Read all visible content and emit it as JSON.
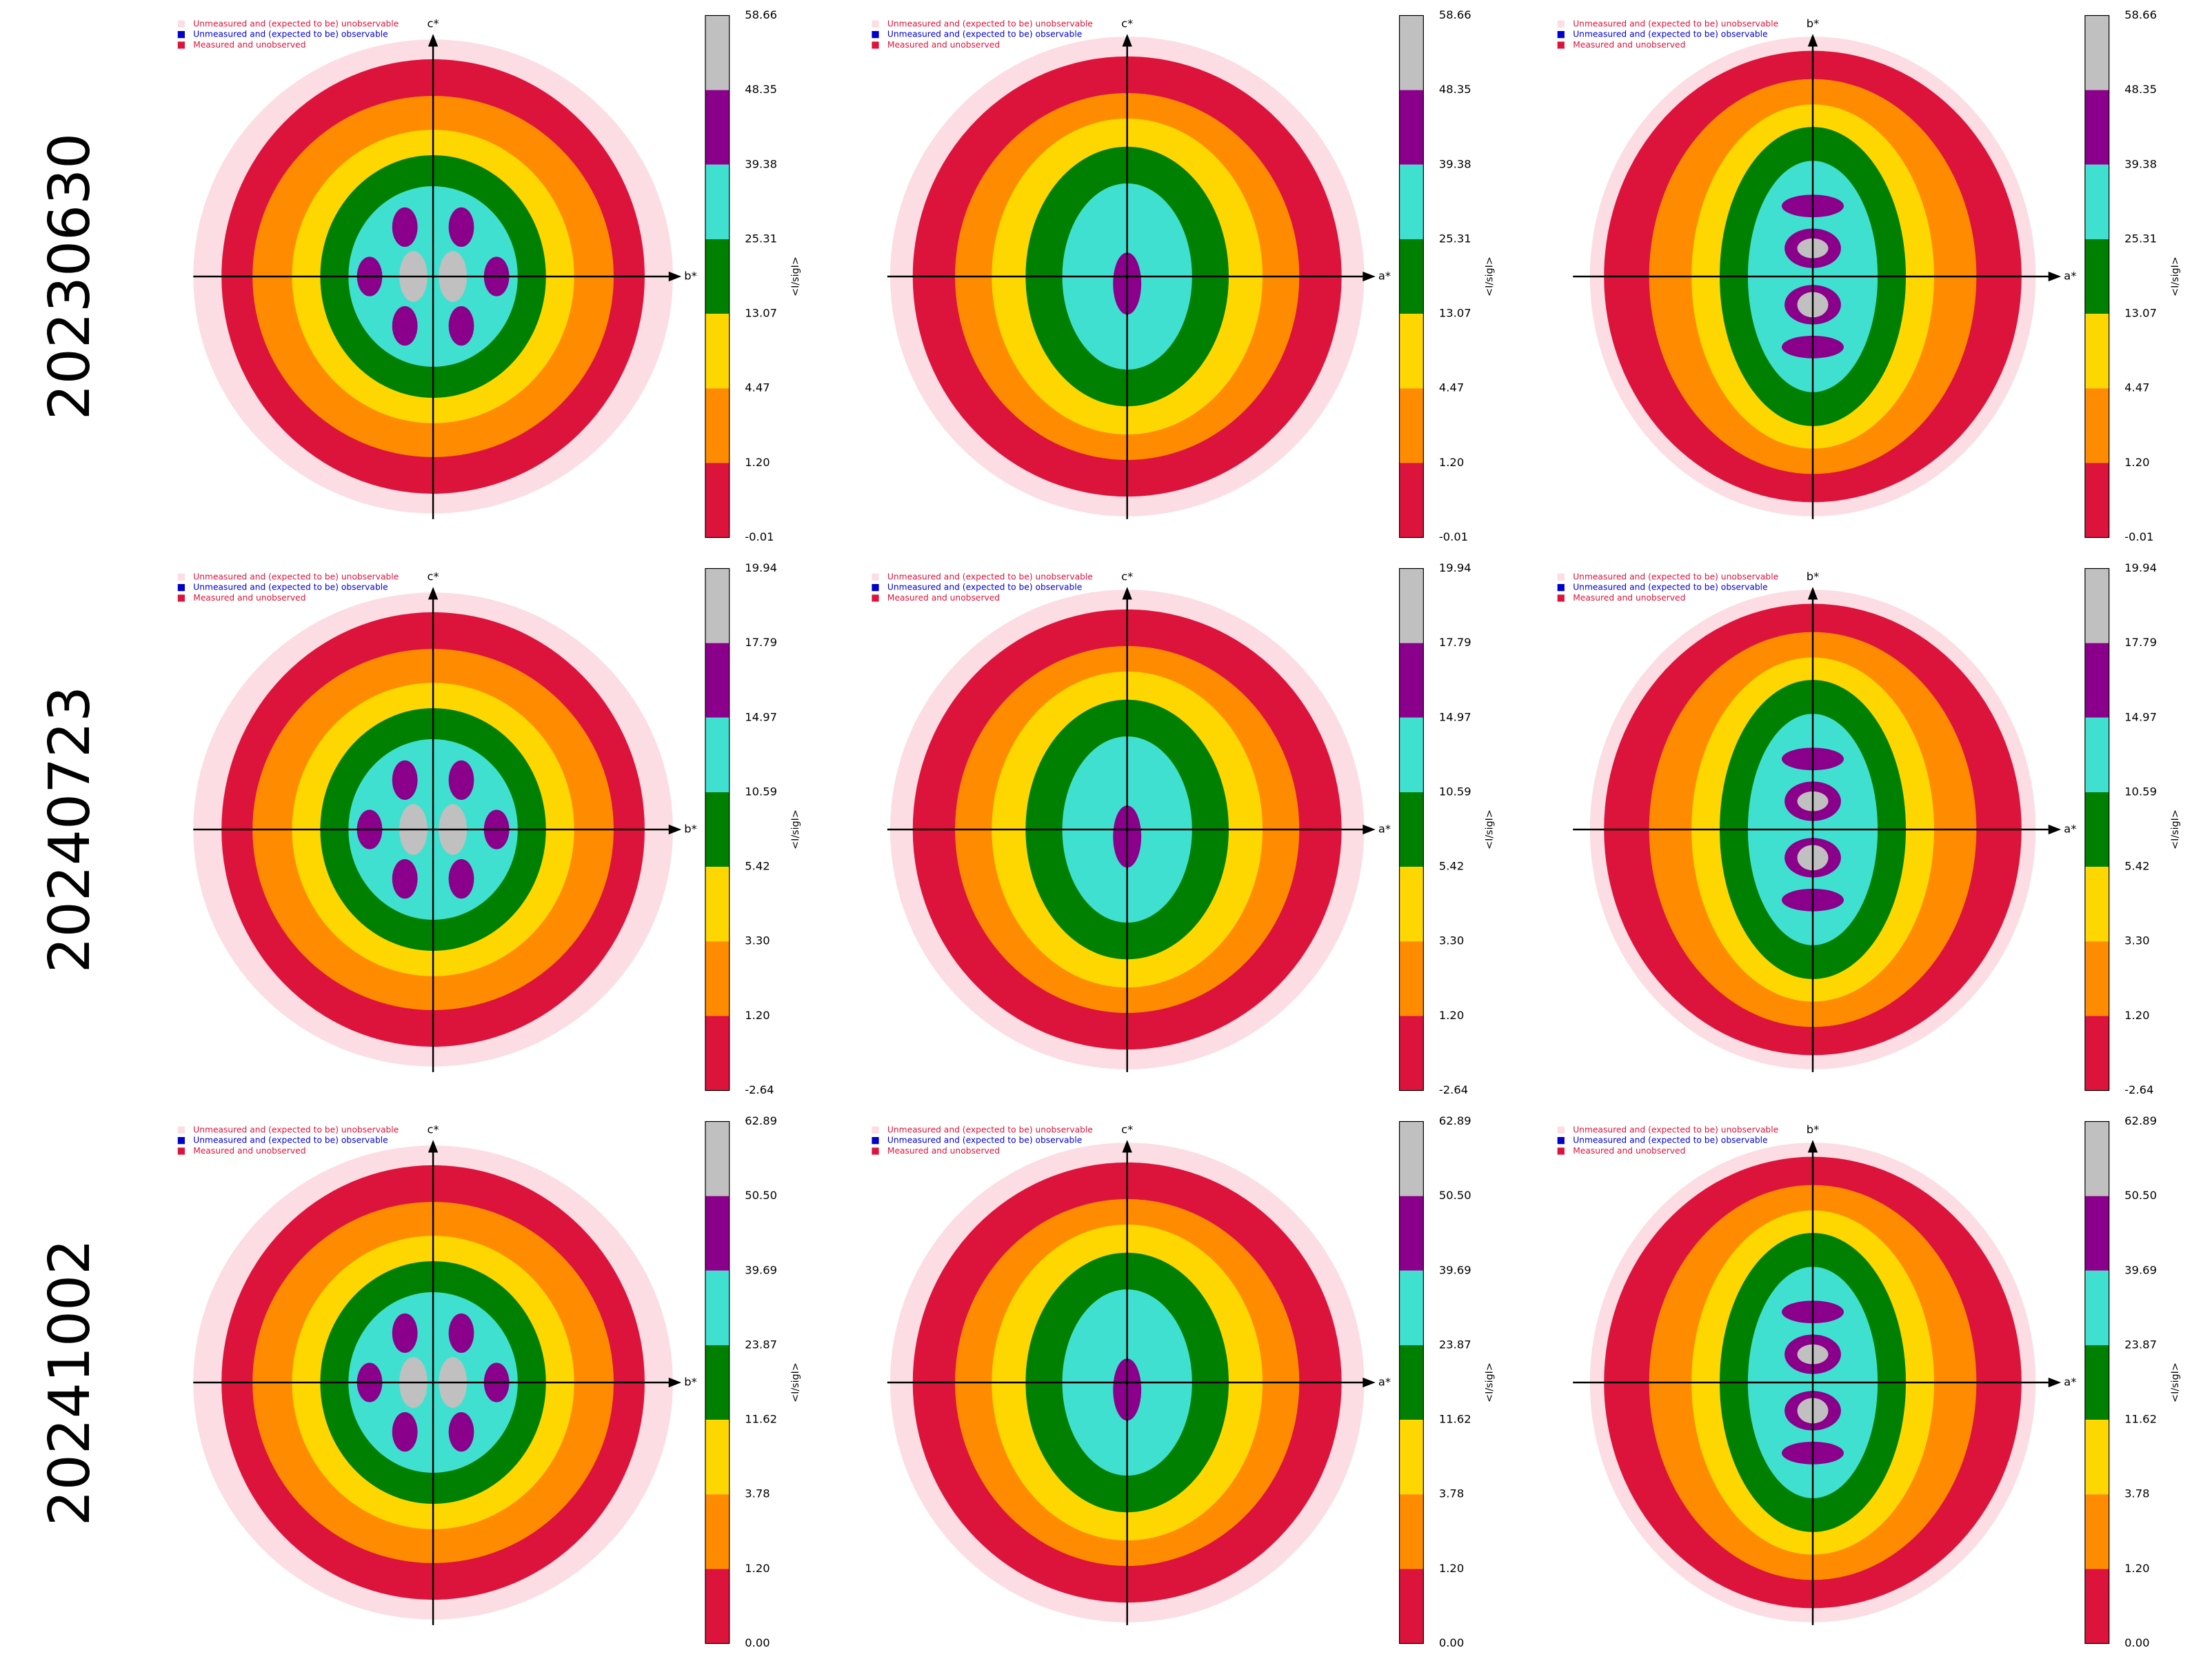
{
  "legend": [
    "Unmeasured and (expected to be) unobservable",
    "Unmeasured and (expected to be) observable",
    "Measured and unobserved"
  ],
  "colorbar_label": "<I/sigI>",
  "columns": [
    {
      "axis_v": "c*",
      "axis_h": "b*"
    },
    {
      "axis_v": "c*",
      "axis_h": "a*"
    },
    {
      "axis_v": "b*",
      "axis_h": "a*"
    }
  ],
  "rows": [
    {
      "label": "20230630",
      "ticks": [
        "58.66",
        "48.35",
        "39.38",
        "25.31",
        "13.07",
        "4.47",
        "1.20",
        "-0.01"
      ]
    },
    {
      "label": "20240723",
      "ticks": [
        "19.94",
        "17.79",
        "14.97",
        "10.59",
        "5.42",
        "3.30",
        "1.20",
        "-2.64"
      ]
    },
    {
      "label": "20241002",
      "ticks": [
        "62.89",
        "50.50",
        "39.69",
        "23.87",
        "11.62",
        "3.78",
        "1.20",
        "0.00"
      ]
    }
  ]
}
